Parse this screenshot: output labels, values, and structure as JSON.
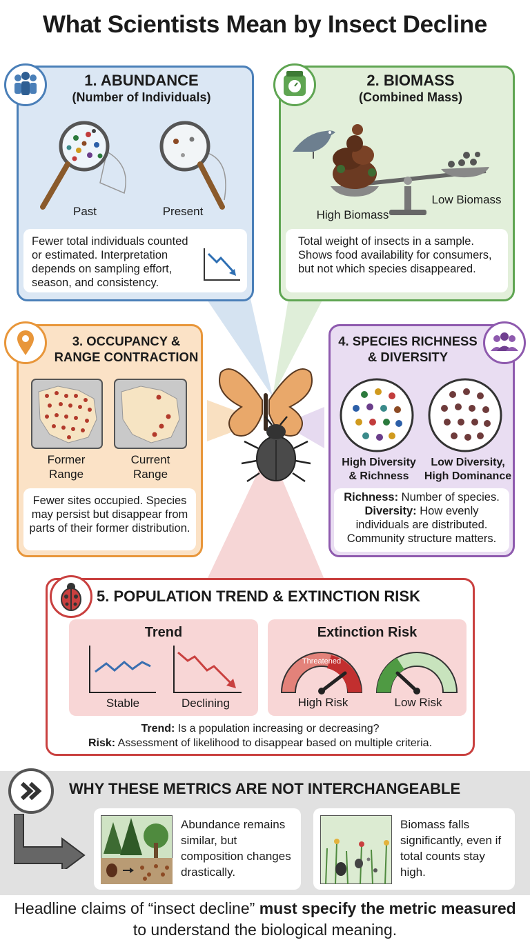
{
  "title": "What Scientists Mean by Insect Decline",
  "abundance": {
    "heading": "1. ABUNDANCE",
    "subheading": "(Number of Individuals)",
    "past_label": "Past",
    "present_label": "Present",
    "description": "Fewer total individuals counted or estimated. Interpretation depends on sampling effort, season, and consistency.",
    "icon": "people-icon"
  },
  "biomass": {
    "heading": "2. BIOMASS",
    "subheading": "(Combined Mass)",
    "high_label": "High Biomass",
    "low_label": "Low Biomass",
    "description": "Total weight of insects in a sample. Shows food availability for consumers, but not which species disappeared.",
    "icon": "scale-icon"
  },
  "occupancy": {
    "heading_line1": "3. OCCUPANCY &",
    "heading_line2": "RANGE CONTRACTION",
    "former_label_1": "Former",
    "former_label_2": "Range",
    "current_label_1": "Current",
    "current_label_2": "Range",
    "description": "Fewer sites occupied. Species may persist but disappear from parts of their former distribution.",
    "icon": "map-pin-icon"
  },
  "richness": {
    "heading_line1": "4. SPECIES RICHNESS",
    "heading_line2": "& DIVERSITY",
    "high_label_1": "High Diversity",
    "high_label_2": "& Richness",
    "low_label_1": "Low Diversity,",
    "low_label_2": "High Dominance",
    "richness_term": "Richness:",
    "richness_def": " Number of species.",
    "diversity_term": "Diversity:",
    "diversity_def": " How evenly individuals are distributed.",
    "extra": "Community structure matters.",
    "icon": "group-icon"
  },
  "trend": {
    "heading": "5. POPULATION TREND & EXTINCTION RISK",
    "trend_title": "Trend",
    "stable_label": "Stable",
    "declining_label": "Declining",
    "risk_title": "Extinction Risk",
    "gauge_text": "Threatened",
    "high_risk_label": "High Risk",
    "low_risk_label": "Low Risk",
    "trend_term": "Trend:",
    "trend_def": " Is a population increasing or decreasing?",
    "risk_term": "Risk:",
    "risk_def": " Assessment of likelihood to disappear based on multiple criteria.",
    "icon": "ladybug-icon"
  },
  "why": {
    "heading": "WHY THESE METRICS ARE NOT INTERCHANGEABLE",
    "example1": "Abundance remains similar, but composition changes drastically.",
    "example2": "Biomass falls significantly, even if total counts stay high.",
    "icon": "double-chevron-icon"
  },
  "footer": {
    "part1": "Headline claims of “insect decline” ",
    "bold1": "must specify the metric measured",
    "part2": " to understand the biological meaning."
  },
  "colors": {
    "blue": "#4a7fb8",
    "green": "#5fa552",
    "orange": "#e8963a",
    "purple": "#8e5aae",
    "red": "#c9403f"
  }
}
